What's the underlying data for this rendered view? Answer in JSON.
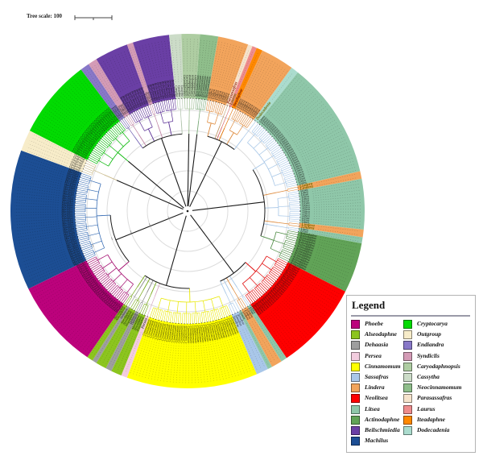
{
  "scale_bar": {
    "label": "Tree scale: 100",
    "length_units": "100"
  },
  "legend": {
    "title": "Legend",
    "items": [
      {
        "name": "Phoebe",
        "color": "#BC027C"
      },
      {
        "name": "Alseodaphne",
        "color": "#8CC51E"
      },
      {
        "name": "Dehaasia",
        "color": "#9E9E9E"
      },
      {
        "name": "Persea",
        "color": "#F2CCDE"
      },
      {
        "name": "Cinnamomum",
        "color": "#FFFF00"
      },
      {
        "name": "Sassafras",
        "color": "#A9C7E9"
      },
      {
        "name": "Lindera",
        "color": "#F2A45C"
      },
      {
        "name": "Neolitsea",
        "color": "#FE0000"
      },
      {
        "name": "Litsea",
        "color": "#8FC7A9"
      },
      {
        "name": "Actinodaphne",
        "color": "#61A357"
      },
      {
        "name": "Beilschmiedia",
        "color": "#6A3FA5"
      },
      {
        "name": "Machilus",
        "color": "#1C4E94"
      },
      {
        "name": "Cryptocarya",
        "color": "#02DB02"
      },
      {
        "name": "Outgroup",
        "color": "#F7ECC9"
      },
      {
        "name": "Endiandra",
        "color": "#8878C8"
      },
      {
        "name": "Syndiclis",
        "color": "#D49BB6"
      },
      {
        "name": "Caryodaphnopsis",
        "color": "#AECDA2"
      },
      {
        "name": "Cassytha",
        "color": "#CCDCC8"
      },
      {
        "name": "Neocinnamomum",
        "color": "#8FBE8B"
      },
      {
        "name": "Parasassafras",
        "color": "#F6E3CC"
      },
      {
        "name": "Laurus",
        "color": "#EE8C8C"
      },
      {
        "name": "Iteadaphne",
        "color": "#FF8800"
      },
      {
        "name": "Dodecadenia",
        "color": "#ABDCCE"
      }
    ]
  },
  "tree": {
    "type": "circular-phylogeny",
    "gridlines": [
      25,
      50,
      75,
      100,
      125
    ],
    "tip_ring_radius": 140,
    "outer_radius": 220,
    "segments": [
      {
        "name": "Neocinnamomum",
        "tip": "Neocinnamomum",
        "color": "#8FBE8B",
        "branch": "#78A876",
        "start": 4,
        "end": 10,
        "leaves": 6,
        "style": "normal"
      },
      {
        "name": "Lindera",
        "tip": "Lindera",
        "color": "#F2A45C",
        "branch": "#DE8A3C",
        "start": 10,
        "end": 20,
        "leaves": 10,
        "style": "normal"
      },
      {
        "name": "Parasassafras",
        "tip": "Parasassafras",
        "color": "#F6E3CC",
        "branch": "#C09A6A",
        "start": 20,
        "end": 21.5,
        "leaves": 1,
        "style": "highlight",
        "label_color": "#8B1500"
      },
      {
        "name": "Laurus",
        "tip": "Laurus",
        "color": "#EE8C8C",
        "branch": "#D86A6A",
        "start": 21.5,
        "end": 23,
        "leaves": 1,
        "style": "highlight",
        "label_color": "#6F6A00"
      },
      {
        "name": "Iteadaphne",
        "tip": "Iteadaphne",
        "color": "#FF8800",
        "branch": "#E07000",
        "start": 23,
        "end": 25,
        "leaves": 1,
        "style": "highlight",
        "label_color": "#7A1500"
      },
      {
        "name": "Lindera",
        "tip": "Lindera",
        "color": "#F2A45C",
        "branch": "#DE8A3C",
        "start": 25,
        "end": 36,
        "leaves": 11,
        "style": "normal"
      },
      {
        "name": "Dodecadenia",
        "tip": "Dodecadenia",
        "color": "#ABDCCE",
        "branch": "#A6C6E7",
        "start": 36,
        "end": 38.5,
        "leaves": 1,
        "style": "highlight",
        "label_color": "#6F6A00"
      },
      {
        "name": "Litsea",
        "tip": "Litsea",
        "color": "#8FC7A9",
        "branch": "#A6C6E7",
        "start": 38.5,
        "end": 77,
        "leaves": 36,
        "style": "normal"
      },
      {
        "name": "Lindera",
        "tip": "Lindera",
        "color": "#F2A45C",
        "branch": "#DE8A3C",
        "start": 77,
        "end": 79.5,
        "leaves": 2,
        "style": "highlight",
        "label_color": "#6F6A00"
      },
      {
        "name": "Litsea",
        "tip": "Litsea",
        "color": "#8FC7A9",
        "branch": "#A6C6E7",
        "start": 79.5,
        "end": 96,
        "leaves": 16,
        "style": "normal"
      },
      {
        "name": "Lindera",
        "tip": "Lindera",
        "color": "#F2A45C",
        "branch": "#DE8A3C",
        "start": 96,
        "end": 98.5,
        "leaves": 2,
        "style": "highlight",
        "label_color": "#6F6A00"
      },
      {
        "name": "Litsea",
        "tip": "Litsea",
        "color": "#8FC7A9",
        "branch": "#A6C6E7",
        "start": 98.5,
        "end": 100.5,
        "leaves": 2,
        "style": "normal"
      },
      {
        "name": "Actinodaphne",
        "tip": "Actinodaphne",
        "color": "#61A357",
        "branch": "#4E8C44",
        "start": 100.5,
        "end": 117,
        "leaves": 15,
        "style": "normal"
      },
      {
        "name": "Neolitsea",
        "tip": "Neolitsea",
        "color": "#FE0000",
        "branch": "#E00000",
        "start": 117,
        "end": 146,
        "leaves": 27,
        "style": "normal"
      },
      {
        "name": "Litsea",
        "tip": "Litsea",
        "color": "#8FC7A9",
        "branch": "#A6C6E7",
        "start": 146,
        "end": 148,
        "leaves": 2,
        "style": "normal"
      },
      {
        "name": "Lindera",
        "tip": "Lindera",
        "color": "#F2A45C",
        "branch": "#DE8A3C",
        "start": 148,
        "end": 151.5,
        "leaves": 3,
        "style": "normal"
      },
      {
        "name": "Litsea",
        "tip": "Litsea",
        "color": "#8FC7A9",
        "branch": "#A6C6E7",
        "start": 151.5,
        "end": 153,
        "leaves": 1,
        "style": "normal"
      },
      {
        "name": "Sassafras",
        "tip": "Sassafras",
        "color": "#A9C7E9",
        "branch": "#A6C6E7",
        "start": 153,
        "end": 157,
        "leaves": 3,
        "style": "normal"
      },
      {
        "name": "Cinnamomum",
        "tip": "Cinnamomum",
        "color": "#FFFF00",
        "branch": "#E8E800",
        "start": 157,
        "end": 200,
        "leaves": 41,
        "style": "normal"
      },
      {
        "name": "Persea",
        "tip": "Persea",
        "color": "#F2CCDE",
        "branch": "#D8A8C4",
        "start": 200,
        "end": 202,
        "leaves": 1,
        "style": "highlight",
        "label_color": "#444444"
      },
      {
        "name": "Alseodaphne",
        "tip": "Alseodaphne",
        "color": "#8CC51E",
        "branch": "#76A818",
        "start": 202,
        "end": 205.5,
        "leaves": 3,
        "style": "normal"
      },
      {
        "name": "Dehaasia",
        "tip": "Dehaasia",
        "color": "#9E9E9E",
        "branch": "#8A8A8A",
        "start": 205.5,
        "end": 207.5,
        "leaves": 2,
        "style": "normal"
      },
      {
        "name": "Alseodaphne",
        "tip": "Alseodaphne",
        "color": "#8CC51E",
        "branch": "#76A818",
        "start": 207.5,
        "end": 211,
        "leaves": 3,
        "style": "normal"
      },
      {
        "name": "Dehaasia",
        "tip": "Dehaasia",
        "color": "#9E9E9E",
        "branch": "#8A8A8A",
        "start": 211,
        "end": 212.5,
        "leaves": 1,
        "style": "normal"
      },
      {
        "name": "Alseodaphne",
        "tip": "Alseodaphne",
        "color": "#8CC51E",
        "branch": "#76A818",
        "start": 212.5,
        "end": 214.5,
        "leaves": 2,
        "style": "normal"
      },
      {
        "name": "Phoebe",
        "tip": "Phoebe",
        "color": "#BC027C",
        "branch": "#A00068",
        "start": 214.5,
        "end": 244,
        "leaves": 28,
        "style": "normal"
      },
      {
        "name": "Machilus",
        "tip": "Machilus",
        "color": "#1C4E94",
        "branch": "#3B6FB5",
        "start": 244,
        "end": 290,
        "leaves": 44,
        "style": "normal"
      },
      {
        "name": "Outgroup",
        "tip": "Outgroup",
        "color": "#F7ECC9",
        "branch": "#C9B98A",
        "start": 290,
        "end": 297,
        "leaves": 6,
        "style": "normal"
      },
      {
        "name": "Cryptocarya",
        "tip": "Cryptocarya",
        "color": "#02DB02",
        "branch": "#02B702",
        "start": 297,
        "end": 323,
        "leaves": 25,
        "style": "normal"
      },
      {
        "name": "Endiandra",
        "tip": "Endiandra",
        "color": "#8878C8",
        "branch": "#7464B4",
        "start": 323,
        "end": 326,
        "leaves": 3,
        "style": "normal"
      },
      {
        "name": "Syndiclis",
        "tip": "Syndiclis",
        "color": "#D49BB6",
        "branch": "#C084A4",
        "start": 326,
        "end": 329,
        "leaves": 3,
        "style": "normal"
      },
      {
        "name": "Beilschmiedia",
        "tip": "Beilschmiedia",
        "color": "#6A3FA5",
        "branch": "#5A2F95",
        "start": 329,
        "end": 340,
        "leaves": 10,
        "style": "normal"
      },
      {
        "name": "Syndiclis",
        "tip": "Syndiclis",
        "color": "#D49BB6",
        "branch": "#C084A4",
        "start": 340,
        "end": 342,
        "leaves": 2,
        "style": "normal"
      },
      {
        "name": "Beilschmiedia",
        "tip": "Beilschmiedia",
        "color": "#6A3FA5",
        "branch": "#5A2F95",
        "start": 342,
        "end": 354,
        "leaves": 11,
        "style": "normal"
      },
      {
        "name": "Cassytha",
        "tip": "Cassytha",
        "color": "#CCDCC8",
        "branch": "#AEC2AA",
        "start": 354,
        "end": 358,
        "leaves": 3,
        "style": "normal"
      },
      {
        "name": "Caryodaphnopsis",
        "tip": "Caryodaphnopsis",
        "color": "#AECDA2",
        "branch": "#96B88A",
        "start": 358,
        "end": 364,
        "leaves": 5,
        "style": "normal"
      }
    ],
    "clade_groups": [
      [
        0
      ],
      [
        1,
        2,
        3,
        4,
        5,
        6
      ],
      [
        7,
        8,
        9,
        10,
        11,
        12
      ],
      [
        13,
        14,
        15,
        16,
        17
      ],
      [
        18,
        19,
        20,
        21,
        22,
        23,
        24
      ],
      [
        25,
        26
      ],
      [
        27
      ],
      [
        28
      ],
      [
        29,
        30,
        31,
        32,
        33,
        34
      ],
      [
        35
      ]
    ]
  }
}
